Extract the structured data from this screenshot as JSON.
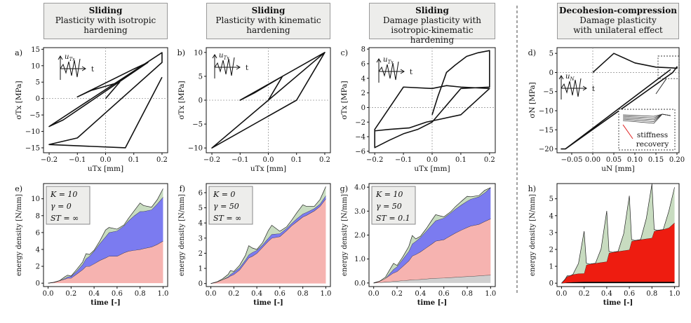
{
  "headers": [
    {
      "title": "Sliding",
      "subtitle": "Plasticity with isotropic\nhardening"
    },
    {
      "title": "Sliding",
      "subtitle": "Plasticity with kinematic\nhardening"
    },
    {
      "title": "Sliding",
      "subtitle": "Damage plasticity with\nisotropic-kinematic hardening"
    },
    {
      "title": "Decohesion-compression",
      "subtitle": "Damage plasticity\nwith unilateral effect"
    }
  ],
  "colors": {
    "stress_line": "#111111",
    "elastic_green": "#c8dcc0",
    "blue": "#7b7bf0",
    "pink": "#f6b3b0",
    "gray": "#cfcfcf",
    "red": "#ee1c10",
    "black": "#000000"
  },
  "chart_data": [
    {
      "id": "a",
      "panel_label": "a)",
      "type": "line",
      "xlabel": "uTx [mm]",
      "ylabel": "σTx [MPa]",
      "xticks": [
        "−0.2",
        "−0.1",
        "0.0",
        "0.1",
        "0.2"
      ],
      "yticks": [
        "−15",
        "−10",
        "−5",
        "0",
        "5",
        "10",
        "15"
      ],
      "xlim": [
        -0.22,
        0.22
      ],
      "ylim": [
        -16.5,
        15.5
      ],
      "inset": {
        "label": "uTx",
        "axis": "t"
      },
      "series": [
        {
          "x": [
            0.0,
            0.05,
            -0.05,
            -0.1,
            0.1,
            0.15,
            -0.15,
            -0.2,
            0.2,
            0.2,
            -0.1,
            -0.2,
            0.07,
            0.2
          ],
          "y": [
            0.0,
            5.0,
            2.5,
            0.5,
            9.0,
            11.0,
            -6.5,
            -8.5,
            14.0,
            11.0,
            -12.0,
            -14.0,
            -15.0,
            6.5
          ]
        }
      ]
    },
    {
      "id": "b",
      "panel_label": "b)",
      "type": "line",
      "xlabel": "uTx [mm]",
      "ylabel": "σTx [MPa]",
      "xticks": [
        "−0.2",
        "−0.1",
        "0.0",
        "0.1",
        "0.2"
      ],
      "yticks": [
        "−10",
        "−5",
        "0",
        "5",
        "10"
      ],
      "xlim": [
        -0.22,
        0.22
      ],
      "ylim": [
        -11,
        11
      ],
      "inset": {
        "label": "uTx",
        "axis": "t"
      },
      "series": [
        {
          "x": [
            0.0,
            0.05,
            -0.05,
            -0.1,
            0.2,
            0.1,
            -0.2,
            0.2
          ],
          "y": [
            0.0,
            5.0,
            1.5,
            0.0,
            10.0,
            0.0,
            -10.0,
            10.0
          ]
        }
      ]
    },
    {
      "id": "c",
      "panel_label": "c)",
      "type": "line",
      "xlabel": "uTx [mm]",
      "ylabel": "σTx [MPa]",
      "xticks": [
        "−0.2",
        "−0.1",
        "0.0",
        "0.1",
        "0.2"
      ],
      "yticks": [
        "−6",
        "−4",
        "−2",
        "0",
        "2",
        "4",
        "6",
        "8"
      ],
      "xlim": [
        -0.22,
        0.22
      ],
      "ylim": [
        -6.2,
        8.2
      ],
      "inset": {
        "label": "uTx",
        "axis": "t"
      },
      "series": [
        {
          "x": [
            0.0,
            0.02,
            0.05,
            0.08,
            0.1,
            0.12,
            0.16,
            0.2,
            0.2,
            0.1,
            0.0,
            -0.05,
            -0.1,
            -0.15,
            -0.2,
            -0.2,
            -0.1,
            0.0,
            0.05,
            0.1,
            0.2,
            0.1,
            -0.02,
            -0.08,
            -0.15,
            -0.2
          ],
          "y": [
            -1.0,
            1.5,
            4.8,
            5.8,
            6.4,
            7.0,
            7.5,
            7.8,
            2.8,
            2.6,
            -2.0,
            -3.0,
            -3.6,
            -4.5,
            -5.5,
            -3.0,
            2.8,
            2.6,
            3.0,
            2.8,
            2.6,
            -1.0,
            -2.0,
            -2.8,
            -3.0,
            -3.2
          ]
        }
      ]
    },
    {
      "id": "d",
      "panel_label": "d)",
      "type": "line",
      "xlabel": "uN [mm]",
      "ylabel": "σN [MPa]",
      "xticks": [
        "−0.05",
        "0.00",
        "0.05",
        "0.10",
        "0.15",
        "0.20"
      ],
      "yticks": [
        "−20",
        "−15",
        "−10",
        "−5",
        "0",
        "5"
      ],
      "xlim": [
        -0.085,
        0.205
      ],
      "ylim": [
        -21,
        6.5
      ],
      "inset": {
        "label": "uN",
        "axis": "t"
      },
      "zoom_label": "stiffness\nrecovery",
      "series": [
        {
          "x": [
            0.0,
            0.05,
            0.1,
            0.15,
            0.19,
            0.2,
            0.2,
            0.19,
            -0.065,
            -0.075,
            -0.065,
            0.185
          ],
          "y": [
            0.0,
            5.0,
            2.5,
            1.4,
            1.2,
            1.1,
            1.5,
            0.0,
            -20.0,
            -20.0,
            -20.0,
            0.8
          ]
        }
      ]
    },
    {
      "id": "e",
      "panel_label": "e)",
      "type": "area",
      "xlabel": "time [-]",
      "ylabel": "energy density [N/mm]",
      "params": [
        "K = 10",
        "γ = 0",
        "ST = ∞"
      ],
      "xticks": [
        "0.0",
        "0.2",
        "0.4",
        "0.6",
        "0.8",
        "1.0"
      ],
      "yticks": [
        "0",
        "2",
        "4",
        "6",
        "8",
        "10"
      ],
      "xlim": [
        -0.04,
        1.04
      ],
      "ylim": [
        -0.4,
        11.8
      ],
      "x": [
        0.0,
        0.05,
        0.1,
        0.15,
        0.17,
        0.2,
        0.25,
        0.3,
        0.33,
        0.36,
        0.4,
        0.45,
        0.5,
        0.53,
        0.6,
        0.66,
        0.7,
        0.75,
        0.8,
        0.83,
        0.9,
        0.95,
        1.0
      ],
      "layers": [
        {
          "name": "pink",
          "values": [
            0,
            0.1,
            0.3,
            0.5,
            0.6,
            0.6,
            1.1,
            1.6,
            2.0,
            2.0,
            2.3,
            2.7,
            3.0,
            3.2,
            3.2,
            3.6,
            3.8,
            3.9,
            4.0,
            4.1,
            4.3,
            4.6,
            5.0
          ]
        },
        {
          "name": "blue",
          "values": [
            0,
            0,
            0,
            0.1,
            0.15,
            0.2,
            0.35,
            0.6,
            0.9,
            1.2,
            1.5,
            2.0,
            2.5,
            2.8,
            3.0,
            3.2,
            3.6,
            4.1,
            4.5,
            4.4,
            4.4,
            4.8,
            5.2
          ]
        },
        {
          "name": "green",
          "values": [
            0,
            0,
            0,
            0.2,
            0.2,
            0.05,
            0.2,
            0.3,
            0.6,
            0.2,
            0.1,
            0.3,
            0.8,
            0.6,
            0.2,
            0.1,
            0.3,
            0.6,
            1.0,
            0.7,
            0.3,
            0.5,
            1.0
          ]
        }
      ]
    },
    {
      "id": "f",
      "panel_label": "f)",
      "type": "area",
      "xlabel": "time [-]",
      "ylabel": "energy density [N/mm]",
      "params": [
        "K = 0",
        "γ = 50",
        "ST = ∞"
      ],
      "xticks": [
        "0.0",
        "0.2",
        "0.4",
        "0.6",
        "0.8",
        "1.0"
      ],
      "yticks": [
        "0",
        "1",
        "2",
        "3",
        "4",
        "5",
        "6"
      ],
      "xlim": [
        -0.04,
        1.04
      ],
      "ylim": [
        -0.2,
        6.6
      ],
      "x": [
        0.0,
        0.05,
        0.1,
        0.15,
        0.17,
        0.2,
        0.25,
        0.3,
        0.33,
        0.36,
        0.4,
        0.45,
        0.5,
        0.53,
        0.6,
        0.66,
        0.7,
        0.75,
        0.8,
        0.83,
        0.9,
        0.95,
        1.0
      ],
      "layers": [
        {
          "name": "pink",
          "values": [
            0,
            0.1,
            0.25,
            0.4,
            0.5,
            0.6,
            0.9,
            1.4,
            1.7,
            1.8,
            2.0,
            2.4,
            2.8,
            3.0,
            3.1,
            3.5,
            3.8,
            4.1,
            4.4,
            4.5,
            4.8,
            5.1,
            5.6
          ]
        },
        {
          "name": "blue",
          "values": [
            0,
            0,
            0,
            0.05,
            0.1,
            0.15,
            0.15,
            0.15,
            0.2,
            0.25,
            0.2,
            0.15,
            0.2,
            0.25,
            0.2,
            0.15,
            0.15,
            0.2,
            0.2,
            0.2,
            0.15,
            0.15,
            0.2
          ]
        },
        {
          "name": "green",
          "values": [
            0,
            0,
            0.05,
            0.15,
            0.25,
            0.05,
            0.15,
            0.3,
            0.6,
            0.3,
            0.05,
            0.15,
            0.5,
            0.6,
            0.15,
            0.1,
            0.2,
            0.4,
            0.6,
            0.4,
            0.15,
            0.3,
            0.6
          ]
        }
      ]
    },
    {
      "id": "g",
      "panel_label": "g)",
      "type": "area",
      "xlabel": "time [-]",
      "ylabel": "energy density [N/mm]",
      "params": [
        "K = 10",
        "γ = 50",
        "ST = 0.1"
      ],
      "xticks": [
        "0.0",
        "0.2",
        "0.4",
        "0.6",
        "0.8",
        "1.0"
      ],
      "yticks": [
        "0.0",
        "1.0",
        "2.0",
        "3.0",
        "4.0"
      ],
      "xlim": [
        -0.04,
        1.04
      ],
      "ylim": [
        -0.15,
        4.15
      ],
      "x": [
        0.0,
        0.05,
        0.1,
        0.15,
        0.17,
        0.2,
        0.25,
        0.3,
        0.33,
        0.36,
        0.4,
        0.45,
        0.5,
        0.53,
        0.6,
        0.66,
        0.7,
        0.75,
        0.8,
        0.83,
        0.9,
        0.95,
        1.0
      ],
      "layers": [
        {
          "name": "gray",
          "values": [
            0,
            0.02,
            0.04,
            0.06,
            0.07,
            0.08,
            0.1,
            0.12,
            0.13,
            0.14,
            0.15,
            0.17,
            0.19,
            0.2,
            0.21,
            0.23,
            0.24,
            0.26,
            0.27,
            0.28,
            0.3,
            0.32,
            0.33
          ]
        },
        {
          "name": "pink",
          "values": [
            0,
            0.05,
            0.15,
            0.3,
            0.35,
            0.4,
            0.6,
            0.8,
            1.0,
            1.05,
            1.15,
            1.3,
            1.45,
            1.55,
            1.6,
            1.75,
            1.85,
            1.95,
            2.05,
            2.1,
            2.15,
            2.25,
            2.35
          ]
        },
        {
          "name": "blue",
          "values": [
            0,
            0,
            0,
            0.1,
            0.15,
            0.2,
            0.3,
            0.4,
            0.5,
            0.55,
            0.6,
            0.7,
            0.8,
            0.85,
            0.9,
            0.95,
            1.0,
            1.05,
            1.1,
            1.12,
            1.15,
            1.2,
            1.3
          ]
        },
        {
          "name": "green",
          "values": [
            0,
            0,
            0.05,
            0.2,
            0.25,
            0.05,
            0.1,
            0.2,
            0.35,
            0.1,
            0.05,
            0.1,
            0.2,
            0.25,
            0.05,
            0.05,
            0.1,
            0.15,
            0.2,
            0.1,
            0.05,
            0.1,
            0.0
          ]
        }
      ]
    },
    {
      "id": "h",
      "panel_label": "h)",
      "type": "area",
      "xlabel": "time [-]",
      "ylabel": "energy density [N/mm]",
      "xticks": [
        "0.0",
        "0.2",
        "0.4",
        "0.6",
        "0.8",
        "1.0"
      ],
      "yticks": [
        "0",
        "1",
        "2",
        "3",
        "4",
        "5"
      ],
      "xlim": [
        -0.04,
        1.04
      ],
      "ylim": [
        -0.2,
        5.9
      ],
      "x": [
        0.0,
        0.03,
        0.05,
        0.08,
        0.1,
        0.15,
        0.2,
        0.22,
        0.25,
        0.3,
        0.35,
        0.4,
        0.42,
        0.45,
        0.5,
        0.55,
        0.6,
        0.62,
        0.65,
        0.7,
        0.75,
        0.8,
        0.82,
        0.85,
        0.9,
        0.95,
        1.0
      ],
      "layers": [
        {
          "name": "black",
          "values": [
            0,
            0.02,
            0.04,
            0.05,
            0.06,
            0.07,
            0.08,
            0.08,
            0.08,
            0.08,
            0.08,
            0.08,
            0.08,
            0.08,
            0.08,
            0.08,
            0.08,
            0.08,
            0.08,
            0.08,
            0.08,
            0.08,
            0.08,
            0.08,
            0.08,
            0.08,
            0.08
          ]
        },
        {
          "name": "red",
          "values": [
            0,
            0.2,
            0.35,
            0.4,
            0.45,
            0.5,
            0.5,
            1.0,
            1.05,
            1.1,
            1.15,
            1.2,
            1.7,
            1.75,
            1.8,
            1.85,
            1.9,
            2.4,
            2.45,
            2.5,
            2.55,
            2.6,
            3.0,
            3.05,
            3.1,
            3.2,
            3.5
          ]
        },
        {
          "name": "green",
          "values": [
            0,
            0.0,
            0.05,
            0.0,
            0.0,
            0.6,
            2.5,
            0.1,
            0.0,
            0.0,
            0.8,
            3.0,
            0.1,
            0.0,
            0.0,
            1.0,
            3.2,
            0.1,
            0.0,
            0.0,
            1.2,
            3.2,
            0.1,
            0.0,
            0.0,
            1.0,
            2.1
          ]
        }
      ]
    }
  ]
}
